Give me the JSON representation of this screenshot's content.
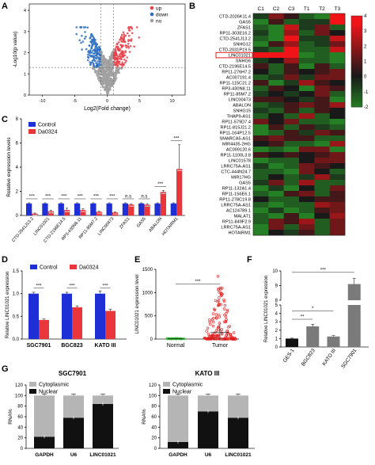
{
  "colors": {
    "up": "#e8434c",
    "down": "#2d6fc1",
    "no": "#a0a0a0",
    "control": "#1f2fd6",
    "da": "#e8363b",
    "green": "#2fbf2f",
    "red": "#e21b1b",
    "black": "#111111",
    "grey": "#b5b5b5",
    "darkgrey": "#7a7a7a"
  },
  "panel_labels": [
    "A",
    "B",
    "C",
    "D",
    "E",
    "F",
    "G"
  ],
  "chart_data": [
    {
      "id": "A",
      "type": "scatter",
      "xlabel": "Log2(Fold change)",
      "ylabel": "-Log10(p value)",
      "xticks": [
        "-10",
        "-5",
        "0",
        "5",
        "10"
      ],
      "yticks": [
        "0",
        "1",
        "2",
        "3",
        "4"
      ],
      "xlim": [
        -12,
        12
      ],
      "ylim": [
        0,
        4.3
      ],
      "legend": [
        "up",
        "down",
        "no"
      ],
      "legend_position": "top-right",
      "thresholds": {
        "x": [
          -1,
          1
        ],
        "y": 1.3
      }
    },
    {
      "id": "B",
      "type": "heatmap",
      "columns": [
        "C1",
        "C2",
        "C3",
        "T1",
        "T2",
        "T3"
      ],
      "rows": [
        "CTD-2026K11.4",
        "GAS5",
        "ZFAS1",
        "RP11-303E16.2",
        "CTD-2541J13.2",
        "SNHG12",
        "CTD-2031P19.5",
        "LINC01021",
        "SNHG6",
        "CTD-2196E14.5",
        "RP11-276H7.2",
        "AC007191.4",
        "RP11-115C21.2",
        "RP3-430N8.11",
        "RP11-85M7.2",
        "LINC00473",
        "ABALON",
        "SNHG15",
        "THAP9-AS1",
        "RP11-579D7.4",
        "RP11-815J21.2",
        "RP11-164P12.5",
        "SMARCA5-AS1",
        "MIR4435-2HG",
        "AC009120.6",
        "RP11-1100L3.8",
        "LINC01578",
        "LRRC75A-AS1",
        "CTC-444N24.7",
        "MIR17HG",
        "GAS5",
        "RP11-132A1.4",
        "RP11-156E6.1",
        "RP11-278C19.8",
        "LRRC75A-AS1",
        "AC124789.1",
        "MALAT1",
        "RP11-849F2.9",
        "LRRC75A-AS1",
        "HOTAIRM1"
      ],
      "highlight_row": "LINC01021",
      "colorbar_ticks": [
        "4",
        "3",
        "2",
        "1",
        "0",
        "-1",
        "-2"
      ],
      "values": [
        [
          -0.5,
          1.2,
          0.3,
          -1,
          -1.5,
          2.6
        ],
        [
          -1.5,
          0.5,
          -1,
          -0.5,
          -0.5,
          4
        ],
        [
          -1,
          -1.5,
          2,
          -0.5,
          1,
          -1
        ],
        [
          -0.5,
          -1.5,
          1.5,
          -1,
          1,
          0
        ],
        [
          -1,
          -1.5,
          2.5,
          -0.5,
          -0.5,
          2
        ],
        [
          -1.5,
          0.5,
          1.5,
          -1,
          -0.5,
          1
        ],
        [
          -0.5,
          -1,
          3,
          -1,
          -1,
          2
        ],
        [
          3,
          3,
          3,
          -1.5,
          -1,
          -1.5
        ],
        [
          -0.5,
          0,
          1.5,
          -1,
          -1,
          -1.5
        ],
        [
          0.5,
          -1,
          0.5,
          -1.5,
          0.5,
          -1
        ],
        [
          0,
          -1,
          0.5,
          0,
          0.5,
          1
        ],
        [
          -1,
          -0.5,
          1,
          -0.5,
          1,
          1
        ],
        [
          0.5,
          -1.5,
          -0.5,
          1.5,
          0.5,
          0
        ],
        [
          -1,
          0.5,
          0,
          -1.5,
          1,
          0.5
        ],
        [
          -0.5,
          0,
          -0.5,
          0,
          1,
          -1
        ],
        [
          0.5,
          0.5,
          0,
          -0.5,
          0.5,
          -1.5
        ],
        [
          -1,
          -0.5,
          0.5,
          1,
          0.5,
          1.5
        ],
        [
          -0.5,
          -1,
          0.5,
          -1,
          0.5,
          0
        ],
        [
          -1,
          0,
          -1,
          1.5,
          -1,
          0
        ],
        [
          1,
          0,
          1,
          -1,
          -1,
          -1.5
        ],
        [
          -1.5,
          0.5,
          -1,
          0.5,
          -0.5,
          -1
        ],
        [
          -1.5,
          -1,
          0.5,
          -0.5,
          1,
          0.5
        ],
        [
          0.5,
          1,
          0.5,
          0.5,
          -1,
          -1
        ],
        [
          0,
          0.5,
          -1,
          -1,
          -1.5,
          1.5
        ],
        [
          -1.5,
          -1,
          -1.5,
          1,
          1,
          -1.5
        ],
        [
          0.5,
          0,
          0.5,
          0,
          0.5,
          1
        ],
        [
          -1.5,
          -1,
          -1,
          0,
          1,
          1
        ],
        [
          -0.5,
          -1.5,
          -1,
          1,
          0.5,
          0
        ],
        [
          -1,
          -1,
          -1.5,
          1,
          0,
          -1
        ],
        [
          -1,
          0,
          -1,
          -0.5,
          1.5,
          -0.5
        ],
        [
          -0.5,
          1,
          -1,
          1.5,
          -1,
          -1
        ],
        [
          -1.5,
          -0.5,
          -1.5,
          0,
          -1,
          1
        ],
        [
          -1,
          -1.5,
          0.5,
          1,
          -1,
          0.5
        ],
        [
          0,
          -1,
          -1,
          0,
          0.5,
          0.5
        ],
        [
          -1,
          -1.5,
          -1,
          -1,
          1.5,
          1
        ],
        [
          -1.5,
          -0.5,
          -1.5,
          -1,
          0.5,
          1
        ],
        [
          -1,
          -1.5,
          0.5,
          -1.5,
          0,
          1.5
        ],
        [
          -1,
          1,
          0.5,
          1.5,
          -1,
          1
        ],
        [
          -1.5,
          1,
          -1,
          1,
          -1,
          1
        ],
        [
          -1.5,
          0,
          -0.5,
          0.5,
          -1,
          1
        ]
      ]
    },
    {
      "id": "C",
      "type": "bar",
      "ylabel": "Relative expression levels",
      "ylim": [
        0,
        8
      ],
      "yticks": [
        "0",
        "2",
        "4",
        "6",
        "8"
      ],
      "categories": [
        "CTD-2541J13.2",
        "LINC01021",
        "CTD-2196E14.5",
        "RP3-430N8.11",
        "RP11-85M7.2",
        "LINC00473",
        "ZFAS1",
        "GAS5",
        "ABALON",
        "HOTAIRM1"
      ],
      "series": [
        {
          "name": "Control",
          "values": [
            1,
            1,
            1,
            1,
            1,
            1,
            1,
            1,
            1,
            1
          ],
          "errors": [
            0.05,
            0.05,
            0.05,
            0.05,
            0.05,
            0.05,
            0.05,
            0.05,
            0.05,
            0.05
          ]
        },
        {
          "name": "Da0324",
          "values": [
            0.15,
            0.35,
            0.45,
            0.45,
            0.3,
            0.25,
            0.9,
            0.9,
            1.95,
            3.85
          ],
          "errors": [
            0.05,
            0.08,
            0.15,
            0.1,
            0.05,
            0.05,
            0.05,
            0.08,
            0.12,
            2.0
          ]
        }
      ],
      "significance": [
        "***",
        "***",
        "***",
        "***",
        "***",
        "***",
        "n.s",
        "n.s",
        "***",
        "***"
      ],
      "legend_position": "top-left"
    },
    {
      "id": "D",
      "type": "bar",
      "ylabel": "Relative LINC01021 expression",
      "ylim": [
        0,
        1.5
      ],
      "yticks": [
        "0.0",
        "0.5",
        "1.0",
        "1.5"
      ],
      "categories": [
        "SGC7901",
        "BGC823",
        "KATO III"
      ],
      "series": [
        {
          "name": "Control",
          "values": [
            1.0,
            1.0,
            1.0
          ],
          "errors": [
            0.03,
            0.03,
            0.06
          ]
        },
        {
          "name": "Da0324",
          "values": [
            0.42,
            0.7,
            0.62
          ],
          "errors": [
            0.02,
            0.03,
            0.04
          ]
        }
      ],
      "significance": [
        "***",
        "***",
        "***"
      ],
      "legend_position": "top"
    },
    {
      "id": "E",
      "type": "scatter",
      "ylabel": "LINC01021 expression level",
      "ylim": [
        0,
        1500
      ],
      "yticks": [
        "0",
        "500",
        "1000",
        "1500"
      ],
      "categories": [
        "Normal",
        "Tumor"
      ],
      "summary": {
        "Normal": {
          "mean": 5,
          "sd": 3
        },
        "Tumor": {
          "mean": 140,
          "sd": 200
        }
      },
      "significance": "***"
    },
    {
      "id": "F",
      "type": "bar",
      "ylabel": "Relative LINC01021 expression",
      "ylim": [
        0,
        10
      ],
      "yticks": [
        "0",
        "1",
        "2",
        "3",
        "4",
        "5",
        "6",
        "7",
        "8",
        "9",
        "10"
      ],
      "broken_axis": [
        5,
        8
      ],
      "categories": [
        "GES-1",
        "BGC823",
        "KATO III",
        "SGC7901"
      ],
      "values": [
        1.0,
        2.45,
        1.25,
        9.1
      ],
      "errors": [
        0.05,
        0.25,
        0.1,
        0.4
      ],
      "significance": [
        {
          "pair": [
            "GES-1",
            "BGC823"
          ],
          "label": "**"
        },
        {
          "pair": [
            "GES-1",
            "KATO III"
          ],
          "label": "*"
        },
        {
          "pair": [
            "GES-1",
            "SGC7901"
          ],
          "label": "***"
        }
      ]
    },
    {
      "id": "G1",
      "type": "bar",
      "title": "SGC7901",
      "ylabel": "RNA%",
      "ylim": [
        0,
        120
      ],
      "yticks": [
        "0",
        "20",
        "40",
        "60",
        "80",
        "100",
        "120"
      ],
      "categories": [
        "GAPDH",
        "U6",
        "LINC01021"
      ],
      "series": [
        {
          "name": "Nuclear",
          "values": [
            22,
            58,
            84
          ]
        },
        {
          "name": "Cytoplasmic",
          "values": [
            78,
            42,
            16
          ]
        }
      ],
      "legend_position": "top-left"
    },
    {
      "id": "G2",
      "type": "bar",
      "title": "KATO III",
      "ylabel": "RNA%",
      "ylim": [
        0,
        120
      ],
      "yticks": [
        "0",
        "20",
        "40",
        "60",
        "80",
        "100",
        "120"
      ],
      "categories": [
        "GAPDH",
        "U6",
        "LINC01021"
      ],
      "series": [
        {
          "name": "Nuclear",
          "values": [
            12,
            70,
            58
          ]
        },
        {
          "name": "Cytoplasmic",
          "values": [
            88,
            30,
            42
          ]
        }
      ],
      "legend_position": "top-left"
    }
  ]
}
